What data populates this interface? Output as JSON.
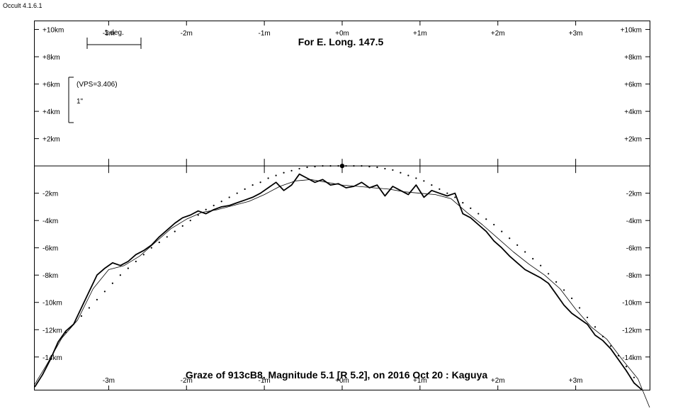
{
  "app": {
    "title": "Occult 4.1.6.1"
  },
  "chart_data": {
    "type": "line",
    "title": "For E. Long. 147.5",
    "subtitle": "Graze of  913cB8,  Magnitude 5.1 [R 5.2],  on 2016 Oct 20  :  Kaguya",
    "x_ticks": [
      "-3m",
      "-2m",
      "-1m",
      "+0m",
      "+1m",
      "+2m",
      "+3m"
    ],
    "x_tick_values": [
      -3,
      -2,
      -1,
      0,
      1,
      2,
      3
    ],
    "xlim": [
      -3.95,
      3.95
    ],
    "ylim": [
      -16.4,
      10.6
    ],
    "y_ticks": [
      "+10km",
      "+8km",
      "+6km",
      "+4km",
      "+2km",
      "-2km",
      "-4km",
      "-6km",
      "-8km",
      "-10km",
      "-12km",
      "-14km"
    ],
    "y_tick_values": [
      10,
      8,
      6,
      4,
      2,
      -2,
      -4,
      -6,
      -8,
      -10,
      -12,
      -14
    ],
    "scale_bar": {
      "label": "1 deg."
    },
    "vertical_scale": {
      "vps_label": "(VPS=3.406)",
      "unit_label": "1\""
    },
    "grid": false,
    "series": [
      {
        "style": "thick-limb",
        "x": [
          -3.95,
          -3.85,
          -3.75,
          -3.65,
          -3.55,
          -3.45,
          -3.35,
          -3.25,
          -3.15,
          -3.05,
          -2.95,
          -2.85,
          -2.75,
          -2.65,
          -2.55,
          -2.45,
          -2.35,
          -2.25,
          -2.15,
          -2.05,
          -1.95,
          -1.85,
          -1.75,
          -1.65,
          -1.55,
          -1.45,
          -1.35,
          -1.25,
          -1.15,
          -1.05,
          -0.95,
          -0.85,
          -0.75,
          -0.65,
          -0.55,
          -0.45,
          -0.35,
          -0.25,
          -0.15,
          -0.05,
          0.05,
          0.15,
          0.25,
          0.35,
          0.45,
          0.55,
          0.65,
          0.75,
          0.85,
          0.95,
          1.05,
          1.15,
          1.25,
          1.35,
          1.45,
          1.55,
          1.65,
          1.75,
          1.85,
          1.95,
          2.05,
          2.15,
          2.25,
          2.35,
          2.45,
          2.55,
          2.65,
          2.75,
          2.85,
          2.95,
          3.05,
          3.15,
          3.25,
          3.35,
          3.45,
          3.55,
          3.65,
          3.75,
          3.85
        ],
        "y": [
          -16.2,
          -15.3,
          -14.2,
          -12.9,
          -12.1,
          -11.6,
          -10.4,
          -9.2,
          -8.0,
          -7.5,
          -7.1,
          -7.3,
          -7.0,
          -6.5,
          -6.2,
          -5.8,
          -5.2,
          -4.7,
          -4.2,
          -3.8,
          -3.6,
          -3.3,
          -3.5,
          -3.2,
          -3.0,
          -2.9,
          -2.7,
          -2.5,
          -2.3,
          -2.0,
          -1.6,
          -1.2,
          -1.8,
          -1.4,
          -0.6,
          -0.9,
          -1.2,
          -1.0,
          -1.4,
          -1.3,
          -1.6,
          -1.5,
          -1.2,
          -1.6,
          -1.4,
          -2.2,
          -1.5,
          -1.8,
          -2.1,
          -1.4,
          -2.3,
          -1.8,
          -2.0,
          -2.2,
          -2.0,
          -3.5,
          -3.8,
          -4.3,
          -4.8,
          -5.5,
          -6.0,
          -6.6,
          -7.1,
          -7.6,
          -7.9,
          -8.2,
          -8.6,
          -9.4,
          -10.2,
          -10.8,
          -11.2,
          -11.6,
          -12.4,
          -12.8,
          -13.4,
          -14.2,
          -15.0,
          -15.9,
          -16.4
        ]
      },
      {
        "style": "thin-smooth",
        "x": [
          -3.95,
          -3.8,
          -3.6,
          -3.4,
          -3.2,
          -3.0,
          -2.8,
          -2.6,
          -2.4,
          -2.2,
          -2.0,
          -1.8,
          -1.6,
          -1.4,
          -1.2,
          -1.0,
          -0.8,
          -0.6,
          -0.4,
          -0.2,
          0.0,
          0.2,
          0.4,
          0.6,
          0.8,
          1.0,
          1.2,
          1.4,
          1.6,
          1.8,
          2.0,
          2.2,
          2.4,
          2.6,
          2.8,
          3.0,
          3.2,
          3.4,
          3.6,
          3.8,
          3.95
        ],
        "y": [
          -16.0,
          -14.6,
          -12.6,
          -11.3,
          -9.0,
          -7.6,
          -7.3,
          -6.6,
          -5.6,
          -4.6,
          -3.9,
          -3.4,
          -3.2,
          -2.9,
          -2.6,
          -2.1,
          -1.5,
          -1.1,
          -1.0,
          -1.2,
          -1.4,
          -1.5,
          -1.6,
          -1.7,
          -1.9,
          -2.0,
          -2.1,
          -2.4,
          -3.4,
          -4.3,
          -5.3,
          -6.3,
          -7.2,
          -8.0,
          -9.0,
          -10.5,
          -11.8,
          -12.7,
          -14.2,
          -15.6,
          -17.7
        ]
      },
      {
        "style": "dotted",
        "x": [
          -3.55,
          -3.45,
          -3.35,
          -3.25,
          -3.15,
          -3.05,
          -2.95,
          -2.85,
          -2.75,
          -2.65,
          -2.55,
          -2.45,
          -2.35,
          -2.25,
          -2.15,
          -2.05,
          -1.95,
          -1.85,
          -1.75,
          -1.65,
          -1.55,
          -1.45,
          -1.35,
          -1.25,
          -1.15,
          -1.05,
          -0.95,
          -0.85,
          -0.75,
          -0.65,
          -0.55,
          -0.45,
          -0.35,
          -0.25,
          -0.15,
          -0.05,
          0.05,
          0.15,
          0.25,
          0.35,
          0.45,
          0.55,
          0.65,
          0.75,
          0.85,
          0.95,
          1.05,
          1.15,
          1.25,
          1.35,
          1.45,
          1.55,
          1.65,
          1.75,
          1.85,
          1.95,
          2.05,
          2.15,
          2.25,
          2.35,
          2.45,
          2.55,
          2.65,
          2.75,
          2.85,
          2.95,
          3.05,
          3.15,
          3.25,
          3.35,
          3.45,
          3.55,
          3.65,
          3.75
        ],
        "y": [
          -12.2,
          -11.6,
          -11.0,
          -10.4,
          -9.8,
          -9.2,
          -8.6,
          -8.0,
          -7.5,
          -7.0,
          -6.5,
          -6.0,
          -5.6,
          -5.2,
          -4.8,
          -4.4,
          -4.0,
          -3.6,
          -3.2,
          -2.9,
          -2.6,
          -2.3,
          -2.0,
          -1.7,
          -1.4,
          -1.2,
          -0.9,
          -0.7,
          -0.5,
          -0.35,
          -0.2,
          -0.1,
          -0.05,
          0.0,
          0.0,
          0.0,
          0.0,
          0.0,
          0.0,
          -0.05,
          -0.1,
          -0.2,
          -0.3,
          -0.5,
          -0.7,
          -0.9,
          -1.1,
          -1.4,
          -1.7,
          -2.0,
          -2.3,
          -2.7,
          -3.1,
          -3.5,
          -3.9,
          -4.3,
          -4.8,
          -5.3,
          -5.8,
          -6.3,
          -6.8,
          -7.3,
          -7.9,
          -8.5,
          -9.1,
          -9.7,
          -10.4,
          -11.1,
          -11.8,
          -12.5,
          -13.2,
          -13.9,
          -14.7,
          -15.5
        ]
      }
    ],
    "markers": [
      {
        "x": 0.0,
        "y": 0.0
      }
    ]
  }
}
